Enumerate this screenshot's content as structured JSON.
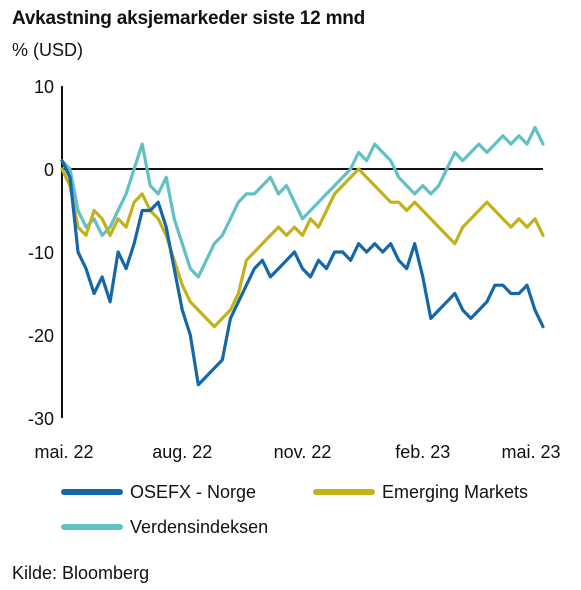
{
  "title": "Avkastning aksjemarkeder siste 12 mnd",
  "unit_label": "% (USD)",
  "source": "Kilde: Bloomberg",
  "colors": {
    "osefx": "#1467a8",
    "em": "#c2b11a",
    "world": "#62c0c4",
    "axis": "#111111"
  },
  "chart_data": {
    "type": "line",
    "title": "Avkastning aksjemarkeder siste 12 mnd",
    "ylabel": "% (USD)",
    "xlabel": "",
    "ylim": [
      -30,
      10
    ],
    "xlim": [
      0,
      12
    ],
    "x_ticks": [
      {
        "x": 0,
        "label": "mai. 22"
      },
      {
        "x": 3,
        "label": "aug. 22"
      },
      {
        "x": 6,
        "label": "nov. 22"
      },
      {
        "x": 9,
        "label": "feb. 23"
      },
      {
        "x": 12,
        "label": "mai. 23"
      }
    ],
    "y_ticks": [
      {
        "y": 10,
        "label": "10"
      },
      {
        "y": 0,
        "label": "0"
      },
      {
        "y": -10,
        "label": "-10"
      },
      {
        "y": -20,
        "label": "-20"
      },
      {
        "y": -30,
        "label": "-30"
      }
    ],
    "grid": false,
    "legend": "bottom",
    "series": [
      {
        "name": "OSEFX - Norge",
        "color": "#1467a8",
        "x": [
          0,
          0.2,
          0.4,
          0.6,
          0.8,
          1.0,
          1.2,
          1.4,
          1.6,
          1.8,
          2.0,
          2.2,
          2.4,
          2.6,
          2.8,
          3.0,
          3.2,
          3.4,
          3.6,
          3.8,
          4.0,
          4.2,
          4.4,
          4.6,
          4.8,
          5.0,
          5.2,
          5.4,
          5.6,
          5.8,
          6.0,
          6.2,
          6.4,
          6.6,
          6.8,
          7.0,
          7.2,
          7.4,
          7.6,
          7.8,
          8.0,
          8.2,
          8.4,
          8.6,
          8.8,
          9.0,
          9.2,
          9.4,
          9.6,
          9.8,
          10.0,
          10.2,
          10.4,
          10.6,
          10.8,
          11.0,
          11.2,
          11.4,
          11.6,
          11.8,
          12.0
        ],
        "values": [
          1,
          -1,
          -10,
          -12,
          -15,
          -13,
          -16,
          -10,
          -12,
          -9,
          -5,
          -5,
          -4,
          -7,
          -12,
          -17,
          -20,
          -26,
          -25,
          -24,
          -23,
          -18,
          -16,
          -14,
          -12,
          -11,
          -13,
          -12,
          -11,
          -10,
          -12,
          -13,
          -11,
          -12,
          -10,
          -10,
          -11,
          -9,
          -10,
          -9,
          -10,
          -9,
          -11,
          -12,
          -9,
          -13,
          -18,
          -17,
          -16,
          -15,
          -17,
          -18,
          -17,
          -16,
          -14,
          -14,
          -15,
          -15,
          -14,
          -17,
          -19
        ]
      },
      {
        "name": "Emerging Markets",
        "color": "#c2b11a",
        "x": [
          0,
          0.2,
          0.4,
          0.6,
          0.8,
          1.0,
          1.2,
          1.4,
          1.6,
          1.8,
          2.0,
          2.2,
          2.4,
          2.6,
          2.8,
          3.0,
          3.2,
          3.4,
          3.6,
          3.8,
          4.0,
          4.2,
          4.4,
          4.6,
          4.8,
          5.0,
          5.2,
          5.4,
          5.6,
          5.8,
          6.0,
          6.2,
          6.4,
          6.6,
          6.8,
          7.0,
          7.2,
          7.4,
          7.6,
          7.8,
          8.0,
          8.2,
          8.4,
          8.6,
          8.8,
          9.0,
          9.2,
          9.4,
          9.6,
          9.8,
          10.0,
          10.2,
          10.4,
          10.6,
          10.8,
          11.0,
          11.2,
          11.4,
          11.6,
          11.8,
          12.0
        ],
        "values": [
          0,
          -2,
          -7,
          -8,
          -5,
          -6,
          -8,
          -6,
          -7,
          -4,
          -3,
          -5,
          -6,
          -8,
          -11,
          -14,
          -16,
          -17,
          -18,
          -19,
          -18,
          -17,
          -15,
          -11,
          -10,
          -9,
          -8,
          -7,
          -8,
          -7,
          -8,
          -6,
          -7,
          -5,
          -3,
          -2,
          -1,
          0,
          -1,
          -2,
          -3,
          -4,
          -4,
          -5,
          -4,
          -5,
          -6,
          -7,
          -8,
          -9,
          -7,
          -6,
          -5,
          -4,
          -5,
          -6,
          -7,
          -6,
          -7,
          -6,
          -8
        ]
      },
      {
        "name": "Verdensindeksen",
        "color": "#62c0c4",
        "x": [
          0,
          0.2,
          0.4,
          0.6,
          0.8,
          1.0,
          1.2,
          1.4,
          1.6,
          1.8,
          2.0,
          2.2,
          2.4,
          2.6,
          2.8,
          3.0,
          3.2,
          3.4,
          3.6,
          3.8,
          4.0,
          4.2,
          4.4,
          4.6,
          4.8,
          5.0,
          5.2,
          5.4,
          5.6,
          5.8,
          6.0,
          6.2,
          6.4,
          6.6,
          6.8,
          7.0,
          7.2,
          7.4,
          7.6,
          7.8,
          8.0,
          8.2,
          8.4,
          8.6,
          8.8,
          9.0,
          9.2,
          9.4,
          9.6,
          9.8,
          10.0,
          10.2,
          10.4,
          10.6,
          10.8,
          11.0,
          11.2,
          11.4,
          11.6,
          11.8,
          12.0
        ],
        "values": [
          1,
          0,
          -5,
          -7,
          -6,
          -8,
          -7,
          -5,
          -3,
          0,
          3,
          -2,
          -3,
          -1,
          -6,
          -9,
          -12,
          -13,
          -11,
          -9,
          -8,
          -6,
          -4,
          -3,
          -3,
          -2,
          -1,
          -3,
          -2,
          -4,
          -6,
          -5,
          -4,
          -3,
          -2,
          -1,
          0,
          2,
          1,
          3,
          2,
          1,
          -1,
          -2,
          -3,
          -2,
          -3,
          -2,
          0,
          2,
          1,
          2,
          3,
          2,
          3,
          4,
          3,
          4,
          3,
          5,
          3
        ]
      }
    ]
  }
}
